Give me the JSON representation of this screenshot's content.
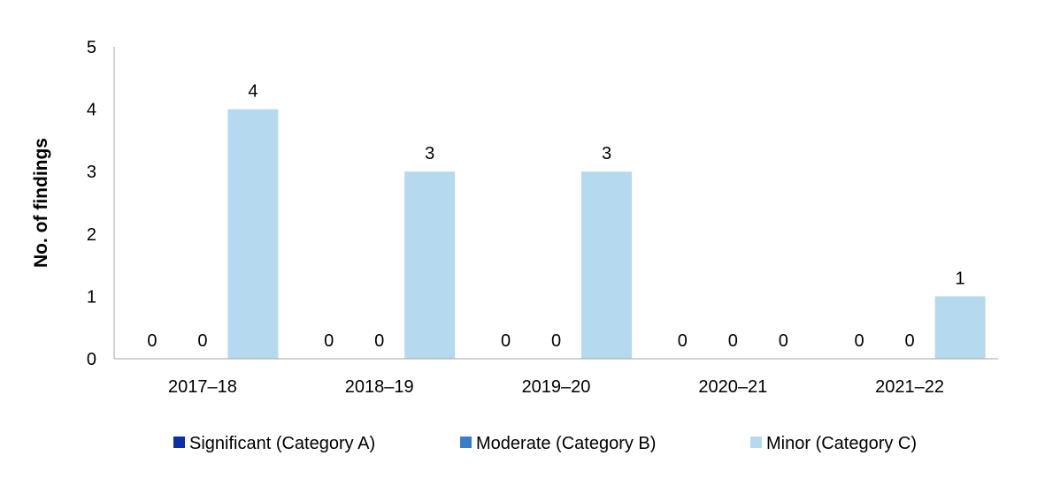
{
  "chart_data": {
    "type": "bar",
    "ylabel": "No. of findings",
    "xlabel": "",
    "ylim": [
      0,
      5
    ],
    "yticks": [
      0,
      1,
      2,
      3,
      4,
      5
    ],
    "categories": [
      "2017–18",
      "2018–19",
      "2019–20",
      "2020–21",
      "2021–22"
    ],
    "series": [
      {
        "name": "Significant (Category A)",
        "color": "#0B2FA6",
        "values": [
          0,
          0,
          0,
          0,
          0
        ]
      },
      {
        "name": "Moderate (Category B)",
        "color": "#3A7DC9",
        "values": [
          0,
          0,
          0,
          0,
          0
        ]
      },
      {
        "name": "Minor (Category C)",
        "color": "#B5D9EE",
        "values": [
          4,
          3,
          3,
          0,
          1
        ]
      }
    ],
    "data_labels": true,
    "grid": false,
    "legend_position": "bottom"
  }
}
